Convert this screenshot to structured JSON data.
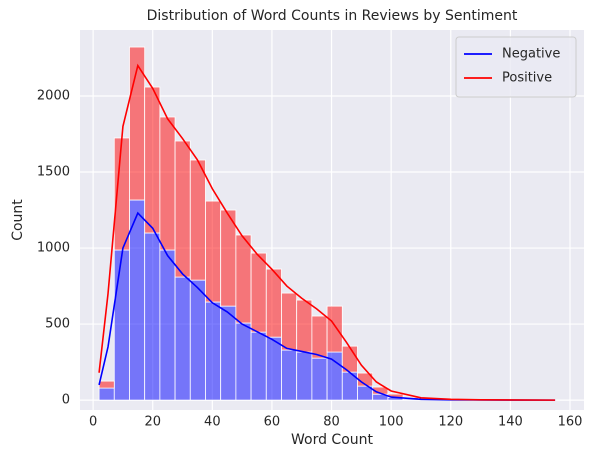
{
  "chart_data": {
    "type": "histogram",
    "title": "Distribution of Word Counts in Reviews by Sentiment",
    "xlabel": "Word Count",
    "ylabel": "Count",
    "bins": [
      2,
      7.1,
      12.2,
      17.3,
      22.4,
      27.5,
      32.6,
      37.7,
      42.8,
      47.9,
      53,
      58.1,
      63.2,
      68.3,
      73.4,
      78.5,
      83.6,
      88.7,
      93.8,
      98.9,
      104,
      109.1,
      114.2,
      119.3,
      124.4,
      129.5,
      134.6,
      139.7,
      144.8,
      149.9,
      155
    ],
    "series": [
      {
        "name": "Negative",
        "color": "#0000ff",
        "values": [
          79,
          987,
          1316,
          1099,
          987,
          809,
          789,
          645,
          618,
          507,
          447,
          414,
          329,
          316,
          276,
          316,
          184,
          92,
          39,
          18,
          8,
          4,
          3,
          2,
          1,
          1,
          1,
          0,
          0,
          1
        ],
        "kde_values": [
          100,
          350,
          1000,
          1230,
          1130,
          950,
          830,
          740,
          640,
          580,
          500,
          450,
          400,
          340,
          320,
          300,
          270,
          200,
          120,
          55,
          20,
          5,
          2,
          1,
          0
        ]
      },
      {
        "name": "Positive",
        "color": "#ff0000",
        "values": [
          46,
          737,
          1006,
          960,
          875,
          895,
          790,
          664,
          632,
          579,
          520,
          448,
          375,
          342,
          277,
          302,
          171,
          86,
          47,
          22,
          10,
          6,
          4,
          3,
          2,
          1,
          1,
          1,
          1,
          1
        ],
        "kde_values": [
          80,
          350,
          800,
          970,
          920,
          900,
          890,
          840,
          750,
          650,
          580,
          510,
          460,
          410,
          350,
          300,
          250,
          180,
          110,
          65,
          40,
          10,
          3,
          1,
          0
        ]
      }
    ],
    "kde_x": [
      2,
      5,
      10,
      15,
      20,
      25,
      30,
      35,
      40,
      45,
      50,
      55,
      60,
      65,
      70,
      75,
      80,
      85,
      90,
      95,
      100,
      110,
      120,
      130,
      155
    ],
    "xlim": [
      -4.4,
      164.7
    ],
    "ylim": [
      -65,
      2434
    ],
    "xticks": [
      0,
      20,
      40,
      60,
      80,
      100,
      120,
      140,
      160
    ],
    "yticks": [
      0,
      500,
      1000,
      1500,
      2000
    ],
    "grid": true,
    "legend": "upper right",
    "bar_alpha": 0.5
  }
}
